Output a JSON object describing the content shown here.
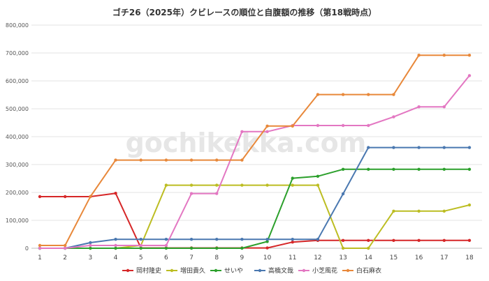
{
  "title": "ゴチ26（2025年）クビレースの順位と自腹額の推移（第18戦時点）",
  "watermark": "gochikekka.com",
  "chart_data": {
    "type": "line",
    "title": "ゴチ26（2025年）クビレースの順位と自腹額の推移（第18戦時点）",
    "x": [
      1,
      2,
      3,
      4,
      5,
      6,
      7,
      8,
      9,
      10,
      11,
      12,
      13,
      14,
      15,
      16,
      17,
      18
    ],
    "ylim": [
      0,
      800000
    ],
    "yticks": [
      0,
      100000,
      200000,
      300000,
      400000,
      500000,
      600000,
      700000,
      800000
    ],
    "ytick_labels": [
      "0",
      "100,000",
      "200,000",
      "300,000",
      "400,000",
      "500,000",
      "600,000",
      "700,000",
      "800,000"
    ],
    "grid": "horizontal",
    "legend_position": "bottom",
    "series": [
      {
        "name": "岡村隆史",
        "color": "#d62728",
        "values": [
          185000,
          185000,
          185000,
          197000,
          1000,
          1000,
          1000,
          1000,
          1000,
          1000,
          22000,
          28000,
          28000,
          28000,
          28000,
          28000,
          28000,
          28000
        ]
      },
      {
        "name": "増田貴久",
        "color": "#bcbd22",
        "values": [
          0,
          0,
          0,
          0,
          10000,
          226000,
          226000,
          226000,
          226000,
          226000,
          226000,
          226000,
          0,
          0,
          133000,
          133000,
          133000,
          155000
        ]
      },
      {
        "name": "せいや",
        "color": "#2ca02c",
        "values": [
          0,
          0,
          0,
          0,
          0,
          0,
          0,
          0,
          0,
          24000,
          251000,
          258000,
          283000,
          283000,
          283000,
          283000,
          283000,
          283000
        ]
      },
      {
        "name": "高橋文哉",
        "color": "#4a78b0",
        "values": [
          0,
          0,
          20000,
          32000,
          32000,
          32000,
          32000,
          32000,
          32000,
          32000,
          32000,
          32000,
          195000,
          361000,
          361000,
          361000,
          361000,
          361000
        ]
      },
      {
        "name": "小芝風花",
        "color": "#e377c2",
        "values": [
          0,
          0,
          10000,
          10000,
          10000,
          10000,
          196000,
          196000,
          418000,
          418000,
          440000,
          440000,
          440000,
          440000,
          471000,
          507000,
          507000,
          619000
        ]
      },
      {
        "name": "白石麻衣",
        "color": "#e8883a",
        "values": [
          10000,
          10000,
          185000,
          316000,
          316000,
          316000,
          316000,
          316000,
          316000,
          438000,
          438000,
          551000,
          551000,
          551000,
          551000,
          692000,
          692000,
          692000
        ]
      }
    ]
  }
}
